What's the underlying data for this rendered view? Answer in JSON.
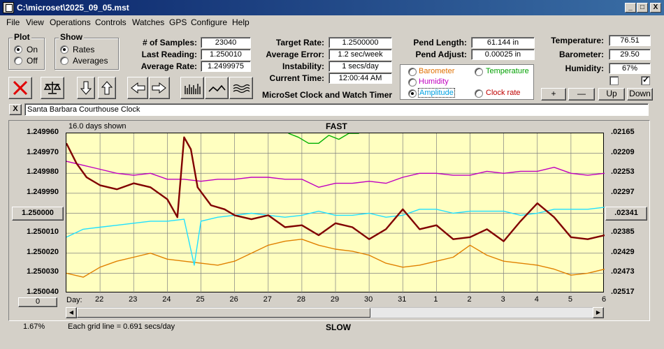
{
  "window": {
    "title": "C:\\microset\\2025_09_05.mst",
    "minimize": "_",
    "maximize": "□",
    "close": "X"
  },
  "menu": [
    "File",
    "View",
    "Operations",
    "Controls",
    "Watches",
    "GPS",
    "Configure",
    "Help"
  ],
  "plot_group": {
    "label": "Plot",
    "options": [
      "On",
      "Off"
    ],
    "selected": "On"
  },
  "show_group": {
    "label": "Show",
    "options": [
      "Rates",
      "Averages"
    ],
    "selected": "Rates"
  },
  "stats": {
    "samples_label": "# of Samples:",
    "samples": "23040",
    "last_reading_label": "Last Reading:",
    "last_reading": "1.250010",
    "average_rate_label": "Average Rate:",
    "average_rate": "1.2499975",
    "target_rate_label": "Target Rate:",
    "target_rate": "1.2500000",
    "average_error_label": "Average Error:",
    "average_error": "1.2 sec/week",
    "instability_label": "Instability:",
    "instability": "1 secs/day",
    "current_time_label": "Current Time:",
    "current_time": "12:00:44 AM",
    "pend_length_label": "Pend Length:",
    "pend_length": "61.144 in",
    "pend_adjust_label": "Pend Adjust:",
    "pend_adjust": "0.00025 in",
    "temperature_label": "Temperature:",
    "temperature": "76.51",
    "barometer_label": "Barometer:",
    "barometer": "29.50",
    "humidity_label": "Humidity:",
    "humidity": "67%"
  },
  "app_heading": "MicroSet Clock and Watch Timer",
  "sensor_options": [
    {
      "label": "Barometer",
      "color": "#e07000",
      "selected": false
    },
    {
      "label": "Temperature",
      "color": "#00a000",
      "selected": false
    },
    {
      "label": "Humidity",
      "color": "#c000c0",
      "selected": false
    },
    {
      "label": "Amplitude",
      "color": "#00a0e0",
      "selected": true
    },
    {
      "label": "Clock rate",
      "color": "#c00000",
      "selected": false
    }
  ],
  "right_buttons": {
    "plus": "+",
    "minus": "—",
    "up": "Up",
    "down": "Down"
  },
  "checkboxes": [
    false,
    true
  ],
  "toolbar_icons": [
    "clear-icon",
    "balance-icon",
    "arrow-down-icon",
    "arrow-up-icon",
    "arrow-left-icon",
    "arrow-right-icon",
    "bars-icon",
    "wave-icon",
    "multiwave-icon"
  ],
  "clock_name": "Santa Barbara Courthouse Clock",
  "clock_name_close": "X",
  "chart_data": {
    "type": "line",
    "top_label": "FAST",
    "bottom_label": "SLOW",
    "days_shown": "16.0 days shown",
    "grid_note": "Each grid line = 0.691 secs/day",
    "x_label": "Day:",
    "x_ticks": [
      "22",
      "23",
      "24",
      "25",
      "26",
      "27",
      "28",
      "29",
      "30",
      "31",
      "1",
      "2",
      "3",
      "4",
      "5",
      "6"
    ],
    "y_left_ticks": [
      "1.249960",
      "1.249970",
      "1.249980",
      "1.249990",
      "1.250000",
      "1.250010",
      "1.250020",
      "1.250030",
      "1.250040"
    ],
    "y_right_ticks": [
      ".02165",
      ".02209",
      ".02253",
      ".02297",
      ".02341",
      ".02385",
      ".02429",
      ".02473",
      ".02517"
    ],
    "ylim": [
      1.24996,
      1.25004
    ],
    "xlim": [
      21,
      37
    ],
    "center_button": "1.250000",
    "right_center_button": ".02341",
    "zero_button": "0",
    "percent": "1.67%",
    "series": [
      {
        "color": "#e08000",
        "x": [
          21,
          21.5,
          22,
          22.5,
          23,
          23.5,
          24,
          24.5,
          25,
          25.5,
          26,
          26.5,
          27,
          27.5,
          28,
          28.5,
          29,
          29.5,
          30,
          30.5,
          31,
          31.5,
          32,
          32.5,
          33,
          33.5,
          34,
          34.5,
          35,
          35.5,
          36,
          36.5,
          37
        ],
        "y": [
          1.25003,
          1.250032,
          1.250027,
          1.250024,
          1.250022,
          1.25002,
          1.250023,
          1.250024,
          1.250025,
          1.250026,
          1.250024,
          1.25002,
          1.250016,
          1.250014,
          1.250013,
          1.250016,
          1.250018,
          1.250019,
          1.250021,
          1.250025,
          1.250027,
          1.250026,
          1.250024,
          1.250022,
          1.250016,
          1.250021,
          1.250024,
          1.250025,
          1.250026,
          1.250028,
          1.250031,
          1.25003,
          1.250028
        ]
      },
      {
        "color": "#00b000",
        "x": [
          27.6,
          27.9,
          28.2,
          28.5,
          28.8,
          29.1,
          29.4,
          29.7
        ],
        "y": [
          1.24996,
          1.249962,
          1.249965,
          1.249965,
          1.249961,
          1.249963,
          1.24996,
          1.24996
        ]
      },
      {
        "color": "#c000c0",
        "x": [
          21,
          21.5,
          22,
          22.5,
          23,
          23.5,
          24,
          24.5,
          25,
          25.5,
          26,
          26.5,
          27,
          27.5,
          28,
          28.5,
          29,
          29.5,
          30,
          30.5,
          31,
          31.5,
          32,
          32.5,
          33,
          33.5,
          34,
          34.5,
          35,
          35.5,
          36,
          36.5,
          37
        ],
        "y": [
          1.249974,
          1.249976,
          1.249978,
          1.24998,
          1.249981,
          1.24998,
          1.249983,
          1.249983,
          1.249984,
          1.249983,
          1.249983,
          1.249982,
          1.249982,
          1.249983,
          1.249983,
          1.249987,
          1.249985,
          1.249985,
          1.249984,
          1.249985,
          1.249982,
          1.24998,
          1.24998,
          1.249981,
          1.249981,
          1.249979,
          1.24998,
          1.249979,
          1.249979,
          1.249977,
          1.24998,
          1.249981,
          1.24998
        ]
      },
      {
        "color": "#20e0ff",
        "x": [
          21,
          21.5,
          22,
          22.5,
          23,
          23.5,
          24,
          24.5,
          24.8,
          25,
          25.5,
          26,
          26.5,
          27,
          27.5,
          28,
          28.5,
          29,
          29.5,
          30,
          30.5,
          31,
          31.5,
          32,
          32.5,
          33,
          33.5,
          34,
          34.5,
          35,
          35.5,
          36,
          36.5,
          37
        ],
        "y": [
          1.250012,
          1.250008,
          1.250007,
          1.250006,
          1.250005,
          1.250004,
          1.250004,
          1.250003,
          1.250026,
          1.250004,
          1.250002,
          1.250001,
          1.25,
          1.250001,
          1.250002,
          1.250001,
          1.249999,
          1.250001,
          1.250001,
          1.25,
          1.250002,
          1.250001,
          1.249998,
          1.249998,
          1.25,
          1.249999,
          1.249999,
          1.249999,
          1.250001,
          1.25,
          1.249998,
          1.249998,
          1.249998,
          1.249997
        ]
      },
      {
        "color": "#800000",
        "x": [
          21,
          21.3,
          21.6,
          22,
          22.5,
          23,
          23.5,
          24,
          24.3,
          24.5,
          24.7,
          24.9,
          25.3,
          25.7,
          26,
          26.5,
          27,
          27.5,
          28,
          28.5,
          29,
          29.5,
          30,
          30.5,
          31,
          31.5,
          32,
          32.5,
          33,
          33.5,
          34,
          34.5,
          35,
          35.5,
          36,
          36.5,
          37
        ],
        "y": [
          1.249965,
          1.249975,
          1.249982,
          1.249986,
          1.249988,
          1.249985,
          1.249987,
          1.249993,
          1.250002,
          1.249962,
          1.249968,
          1.249987,
          1.249996,
          1.249998,
          1.250001,
          1.250003,
          1.250001,
          1.250007,
          1.250006,
          1.250011,
          1.250005,
          1.250007,
          1.250013,
          1.250008,
          1.249998,
          1.250008,
          1.250006,
          1.250013,
          1.250012,
          1.250008,
          1.250014,
          1.250004,
          1.249995,
          1.250002,
          1.250012,
          1.250013,
          1.250011
        ]
      }
    ]
  }
}
